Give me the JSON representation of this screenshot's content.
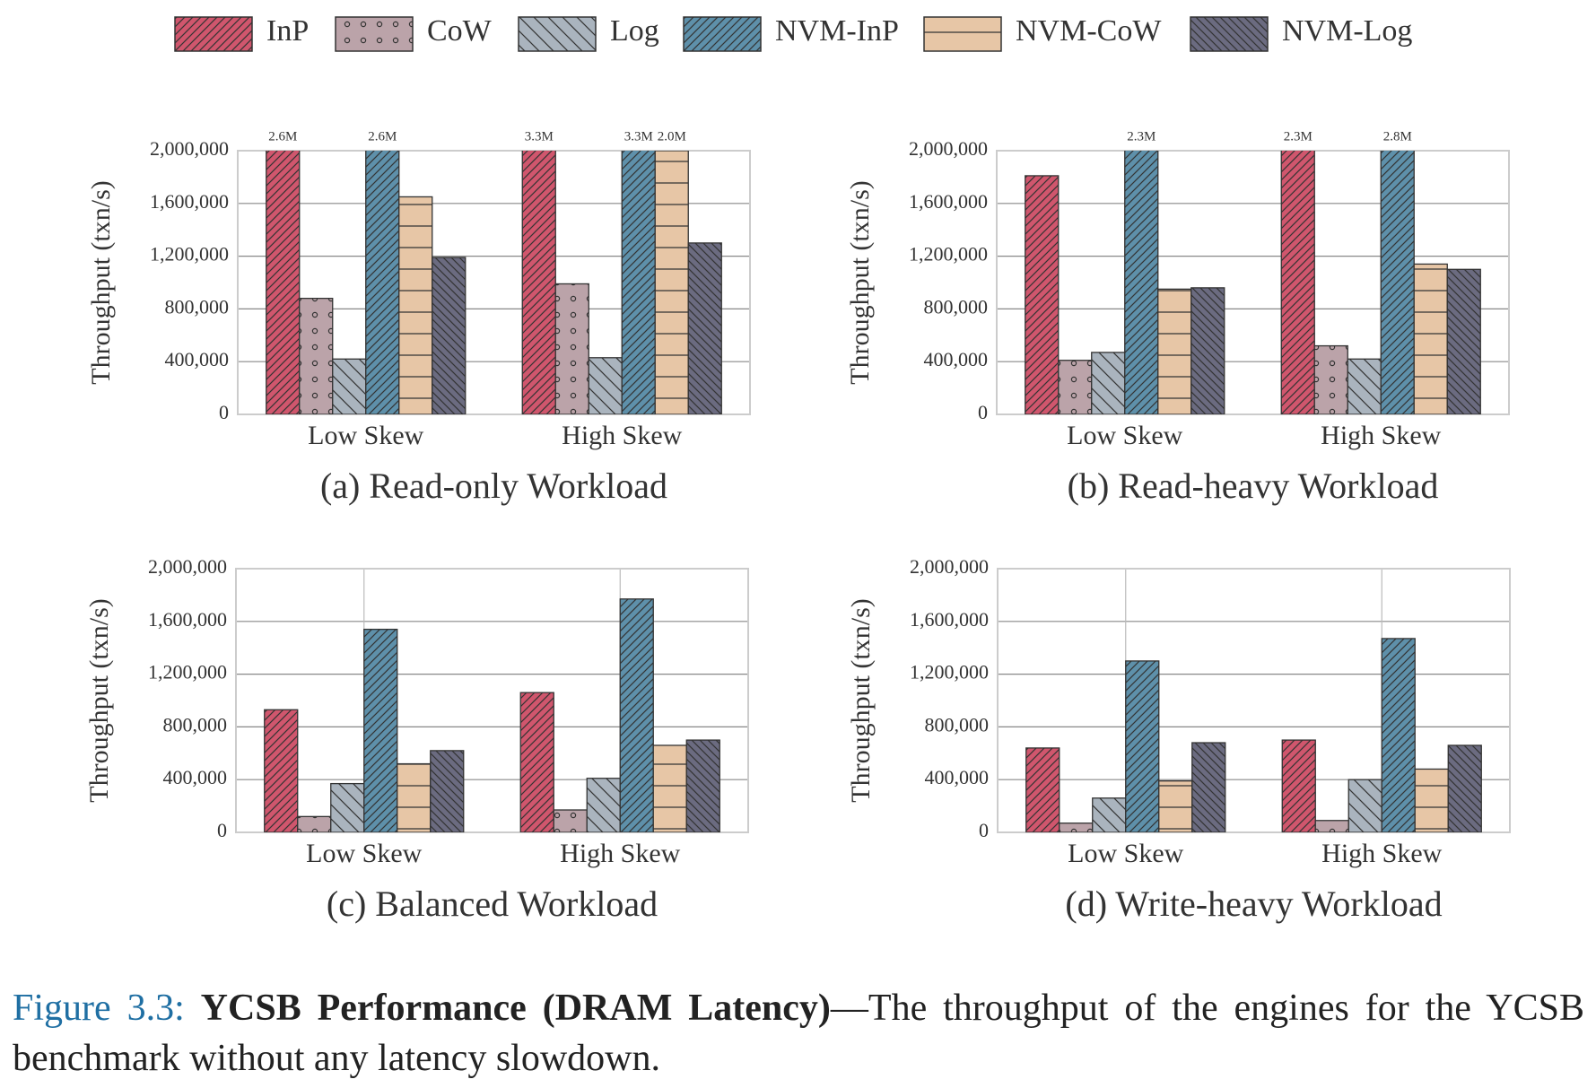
{
  "chart_data": [
    {
      "type": "bar",
      "title": "(a) Read-only Workload",
      "ylabel": "Throughput (txn/s)",
      "categories": [
        "Low Skew",
        "High Skew"
      ],
      "ylim": [
        0,
        2000000
      ],
      "yticks": [
        0,
        {
          "value": 400000,
          "label": "400,000"
        },
        {
          "value": 800000,
          "label": "800,000"
        },
        {
          "value": 1200000,
          "label": "1,200,000"
        },
        {
          "value": 1600000,
          "label": "1,600,000"
        },
        {
          "value": 2000000,
          "label": "2,000,000"
        }
      ],
      "grid": true,
      "series": [
        {
          "name": "InP",
          "color": "#d0566d",
          "hatch": "dense-diagonal",
          "values": [
            2600000,
            3300000
          ],
          "value_labels": [
            "2.6M",
            "3.3M"
          ]
        },
        {
          "name": "CoW",
          "color": "#bba3a9",
          "hatch": "dots",
          "values": [
            880000,
            990000
          ]
        },
        {
          "name": "Log",
          "color": "#aab4be",
          "hatch": "back-diagonal",
          "values": [
            420000,
            430000
          ]
        },
        {
          "name": "NVM-InP",
          "color": "#5e90aa",
          "hatch": "dense-diagonal",
          "values": [
            2600000,
            3300000
          ],
          "value_labels": [
            "2.6M",
            "3.3M"
          ]
        },
        {
          "name": "NVM-CoW",
          "color": "#e7c6a6",
          "hatch": "horizontal",
          "values": [
            1650000,
            2000000
          ],
          "value_labels": [
            null,
            "2.0M"
          ]
        },
        {
          "name": "NVM-Log",
          "color": "#6b6b80",
          "hatch": "dense-back-diagonal",
          "values": [
            1190000,
            1300000
          ]
        }
      ]
    },
    {
      "type": "bar",
      "title": "(b) Read-heavy Workload",
      "ylabel": "Throughput (txn/s)",
      "categories": [
        "Low Skew",
        "High Skew"
      ],
      "ylim": [
        0,
        2000000
      ],
      "yticks": [
        0,
        {
          "value": 400000,
          "label": "400,000"
        },
        {
          "value": 800000,
          "label": "800,000"
        },
        {
          "value": 1200000,
          "label": "1,200,000"
        },
        {
          "value": 1600000,
          "label": "1,600,000"
        },
        {
          "value": 2000000,
          "label": "2,000,000"
        }
      ],
      "grid": true,
      "series": [
        {
          "name": "InP",
          "color": "#d0566d",
          "hatch": "dense-diagonal",
          "values": [
            1810000,
            2300000
          ],
          "value_labels": [
            null,
            "2.3M"
          ]
        },
        {
          "name": "CoW",
          "color": "#bba3a9",
          "hatch": "dots",
          "values": [
            410000,
            520000
          ]
        },
        {
          "name": "Log",
          "color": "#aab4be",
          "hatch": "back-diagonal",
          "values": [
            470000,
            420000
          ]
        },
        {
          "name": "NVM-InP",
          "color": "#5e90aa",
          "hatch": "dense-diagonal",
          "values": [
            2300000,
            2800000
          ],
          "value_labels": [
            "2.3M",
            "2.8M"
          ]
        },
        {
          "name": "NVM-CoW",
          "color": "#e7c6a6",
          "hatch": "horizontal",
          "values": [
            950000,
            1140000
          ]
        },
        {
          "name": "NVM-Log",
          "color": "#6b6b80",
          "hatch": "dense-back-diagonal",
          "values": [
            960000,
            1100000
          ]
        }
      ]
    },
    {
      "type": "bar",
      "title": "(c) Balanced Workload",
      "ylabel": "Throughput (txn/s)",
      "categories": [
        "Low Skew",
        "High Skew"
      ],
      "ylim": [
        0,
        2000000
      ],
      "yticks": [
        0,
        {
          "value": 400000,
          "label": "400,000"
        },
        {
          "value": 800000,
          "label": "800,000"
        },
        {
          "value": 1200000,
          "label": "1,200,000"
        },
        {
          "value": 1600000,
          "label": "1,600,000"
        },
        {
          "value": 2000000,
          "label": "2,000,000"
        }
      ],
      "grid": true,
      "series": [
        {
          "name": "InP",
          "color": "#d0566d",
          "hatch": "dense-diagonal",
          "values": [
            930000,
            1060000
          ]
        },
        {
          "name": "CoW",
          "color": "#bba3a9",
          "hatch": "dots",
          "values": [
            120000,
            170000
          ]
        },
        {
          "name": "Log",
          "color": "#aab4be",
          "hatch": "back-diagonal",
          "values": [
            370000,
            410000
          ]
        },
        {
          "name": "NVM-InP",
          "color": "#5e90aa",
          "hatch": "dense-diagonal",
          "values": [
            1540000,
            1770000
          ]
        },
        {
          "name": "NVM-CoW",
          "color": "#e7c6a6",
          "hatch": "horizontal",
          "values": [
            520000,
            660000
          ]
        },
        {
          "name": "NVM-Log",
          "color": "#6b6b80",
          "hatch": "dense-back-diagonal",
          "values": [
            620000,
            700000
          ]
        }
      ]
    },
    {
      "type": "bar",
      "title": "(d) Write-heavy Workload",
      "ylabel": "Throughput (txn/s)",
      "categories": [
        "Low Skew",
        "High Skew"
      ],
      "ylim": [
        0,
        2000000
      ],
      "yticks": [
        0,
        {
          "value": 400000,
          "label": "400,000"
        },
        {
          "value": 800000,
          "label": "800,000"
        },
        {
          "value": 1200000,
          "label": "1,200,000"
        },
        {
          "value": 1600000,
          "label": "1,600,000"
        },
        {
          "value": 2000000,
          "label": "2,000,000"
        }
      ],
      "grid": true,
      "series": [
        {
          "name": "InP",
          "color": "#d0566d",
          "hatch": "dense-diagonal",
          "values": [
            640000,
            700000
          ]
        },
        {
          "name": "CoW",
          "color": "#bba3a9",
          "hatch": "dots",
          "values": [
            70000,
            90000
          ]
        },
        {
          "name": "Log",
          "color": "#aab4be",
          "hatch": "back-diagonal",
          "values": [
            260000,
            400000
          ]
        },
        {
          "name": "NVM-InP",
          "color": "#5e90aa",
          "hatch": "dense-diagonal",
          "values": [
            1300000,
            1470000
          ]
        },
        {
          "name": "NVM-CoW",
          "color": "#e7c6a6",
          "hatch": "horizontal",
          "values": [
            390000,
            480000
          ]
        },
        {
          "name": "NVM-Log",
          "color": "#6b6b80",
          "hatch": "dense-back-diagonal",
          "values": [
            680000,
            660000
          ]
        }
      ]
    }
  ],
  "caption": {
    "label": "Figure 3.3:",
    "bold": "YCSB Performance (DRAM Latency)",
    "text": "—The throughput of the engines for the YCSB benchmark without any latency slowdown."
  }
}
